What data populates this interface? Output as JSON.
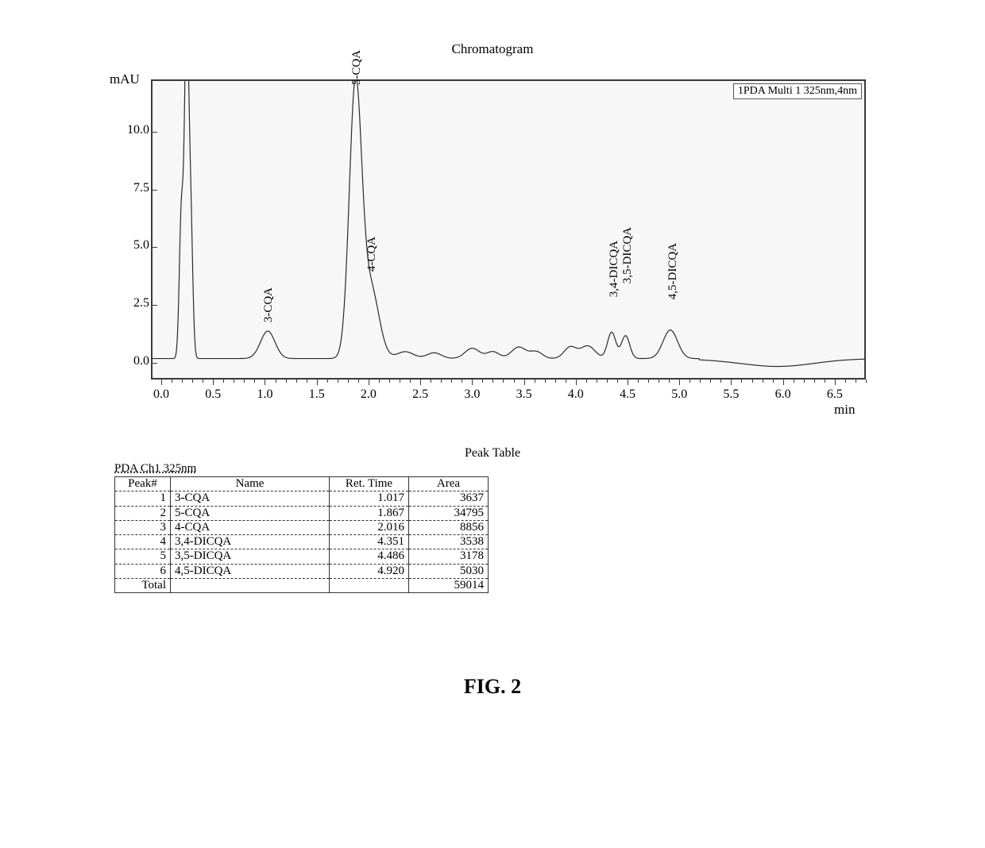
{
  "title": "Chromatogram",
  "y_axis_label": "mAU",
  "x_axis_label": "min",
  "legend_text": "1PDA Multi 1 325nm,4nm",
  "figure_caption": "FIG. 2",
  "chart": {
    "type": "line-chromatogram",
    "background_color": "#f7f7f7",
    "border_color": "#3a3a3a",
    "line_color": "#2a2a2a",
    "line_width": 1.2,
    "xlim": [
      -0.1,
      6.8
    ],
    "ylim": [
      -0.8,
      12.2
    ],
    "y_ticks": [
      0.0,
      2.5,
      5.0,
      7.5,
      10.0
    ],
    "y_tick_labels": [
      "0.0",
      "2.5",
      "5.0",
      "7.5",
      "10.0"
    ],
    "x_ticks": [
      0.0,
      0.5,
      1.0,
      1.5,
      2.0,
      2.5,
      3.0,
      3.5,
      4.0,
      4.5,
      5.0,
      5.5,
      6.0,
      6.5
    ],
    "x_tick_labels": [
      "0.0",
      "0.5",
      "1.0",
      "1.5",
      "2.0",
      "2.5",
      "3.0",
      "3.5",
      "4.0",
      "4.5",
      "5.0",
      "5.5",
      "6.0",
      "6.5"
    ],
    "x_minor_per_major": 5,
    "peaks": [
      {
        "name": "injection-a",
        "label": "",
        "rt": 0.18,
        "height": 6.4,
        "width": 0.02
      },
      {
        "name": "injection-b",
        "label": "",
        "rt": 0.23,
        "height": 14.5,
        "width": 0.02
      },
      {
        "name": "injection-c",
        "label": "",
        "rt": 0.27,
        "height": 6.0,
        "width": 0.02
      },
      {
        "name": "3-CQA",
        "label": "3-CQA",
        "rt": 1.017,
        "height": 1.2,
        "width": 0.07
      },
      {
        "name": "5-CQA",
        "label": "5-CQA",
        "rt": 1.867,
        "height": 11.8,
        "width": 0.06
      },
      {
        "name": "4-CQA",
        "label": "4-CQA",
        "rt": 2.016,
        "height": 3.05,
        "width": 0.08
      },
      {
        "name": "m1",
        "label": "",
        "rt": 2.35,
        "height": 0.3,
        "width": 0.08
      },
      {
        "name": "m2",
        "label": "",
        "rt": 2.63,
        "height": 0.25,
        "width": 0.07
      },
      {
        "name": "m3",
        "label": "",
        "rt": 3.0,
        "height": 0.45,
        "width": 0.07
      },
      {
        "name": "m4",
        "label": "",
        "rt": 3.2,
        "height": 0.3,
        "width": 0.06
      },
      {
        "name": "m5",
        "label": "",
        "rt": 3.45,
        "height": 0.5,
        "width": 0.07
      },
      {
        "name": "m6",
        "label": "",
        "rt": 3.62,
        "height": 0.3,
        "width": 0.06
      },
      {
        "name": "m7",
        "label": "",
        "rt": 3.95,
        "height": 0.5,
        "width": 0.06
      },
      {
        "name": "m8",
        "label": "",
        "rt": 4.12,
        "height": 0.55,
        "width": 0.07
      },
      {
        "name": "3,4-DICQA",
        "label": "3,4-DICQA",
        "rt": 4.351,
        "height": 1.15,
        "width": 0.04
      },
      {
        "name": "3,5-DICQA",
        "label": "3,5-DICQA",
        "rt": 4.486,
        "height": 1.0,
        "width": 0.04
      },
      {
        "name": "4,5-DICQA",
        "label": "4,5-DICQA",
        "rt": 4.92,
        "height": 1.25,
        "width": 0.07
      },
      {
        "name": "m9",
        "label": "",
        "rt": 5.5,
        "height": 0.0,
        "width": 0.1
      },
      {
        "name": "m10",
        "label": "",
        "rt": 6.0,
        "height": -0.15,
        "width": 0.3
      }
    ],
    "label_y_offsets": {
      "3-CQA": 1.6,
      "5-CQA": 11.9,
      "4-CQA": 3.8,
      "3,4-DICQA": 2.7,
      "3,5-DICQA": 3.3,
      "4,5-DICQA": 2.6
    }
  },
  "table": {
    "title": "Peak Table",
    "channel_label": "PDA Ch1 325nm",
    "columns": [
      "Peak#",
      "Name",
      "Ret. Time",
      "Area"
    ],
    "rows": [
      [
        "1",
        "3-CQA",
        "1.017",
        "3637"
      ],
      [
        "2",
        "5-CQA",
        "1.867",
        "34795"
      ],
      [
        "3",
        "4-CQA",
        "2.016",
        "8856"
      ],
      [
        "4",
        "3,4-DICQA",
        "4.351",
        "3538"
      ],
      [
        "5",
        "3,5-DICQA",
        "4.486",
        "3178"
      ],
      [
        "6",
        "4,5-DICQA",
        "4.920",
        "5030"
      ],
      [
        "Total",
        "",
        "",
        "59014"
      ]
    ]
  }
}
